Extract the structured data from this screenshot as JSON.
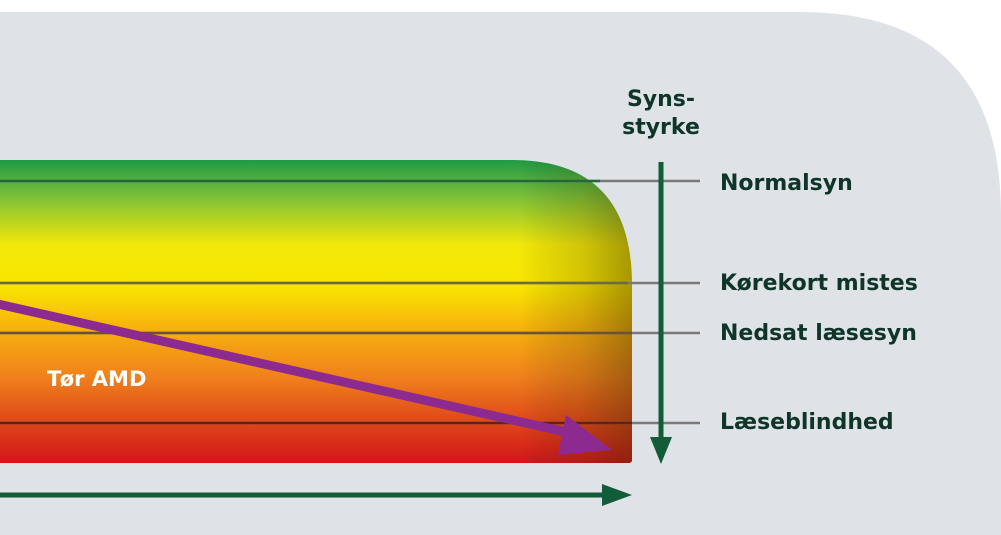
{
  "axis": {
    "vertical_label": "Syns-\nstyrke"
  },
  "levels": [
    {
      "id": "normal",
      "label": "Normalsyn"
    },
    {
      "id": "korekort",
      "label": "Kørekort mistes"
    },
    {
      "id": "nedsat",
      "label": "Nedsat læsesyn"
    },
    {
      "id": "laese",
      "label": "Læseblindhed"
    }
  ],
  "condition": {
    "label": "Tør AMD"
  },
  "colors": {
    "background": "#dfe3e8",
    "axis_arrow": "#125c38",
    "level_line": "#7a7a7a",
    "trend_arrow": "#8c2a8f",
    "text_dark": "#0e3528",
    "gradient_top": "#1e9a45",
    "gradient_yellow": "#f5e600",
    "gradient_orange": "#f08a1c",
    "gradient_bottom": "#d4161a"
  }
}
